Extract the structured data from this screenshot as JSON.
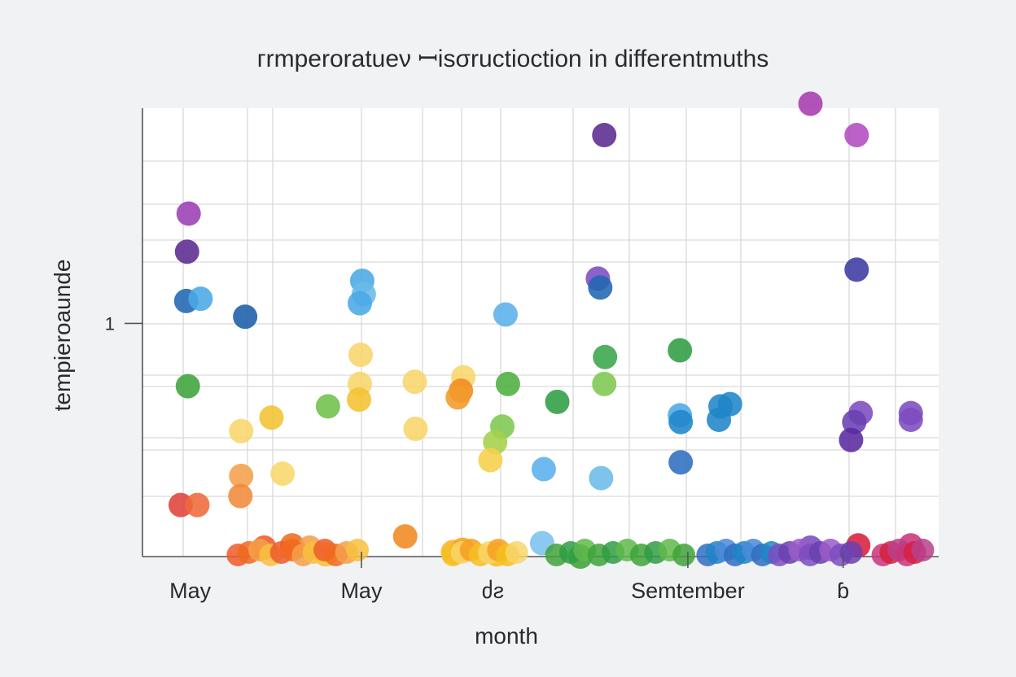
{
  "chart_data": {
    "type": "scatter",
    "title": "гrmperoratueν ꟷisσructioction in differentmuths",
    "xlabel": "month",
    "ylabel": "tempieroaunde",
    "xlim": [
      0,
      10
    ],
    "ylim": [
      0,
      2
    ],
    "x_ticks": [
      {
        "value": 0.6,
        "label": "May"
      },
      {
        "value": 2.75,
        "label": "May"
      },
      {
        "value": 4.4,
        "label": "ძƨ"
      },
      {
        "value": 6.85,
        "label": "Semtember"
      },
      {
        "value": 8.8,
        "label": "ɓ"
      }
    ],
    "y_ticks": [
      {
        "value": 1.04,
        "label": "1"
      }
    ],
    "grid": true,
    "points": [
      {
        "x": 0.58,
        "y": 1.53,
        "color": "#9b3fb5"
      },
      {
        "x": 0.56,
        "y": 1.36,
        "color": "#5a2a8e"
      },
      {
        "x": 0.55,
        "y": 1.14,
        "color": "#1f66b0"
      },
      {
        "x": 0.73,
        "y": 1.15,
        "color": "#4aa8e6"
      },
      {
        "x": 1.29,
        "y": 1.07,
        "color": "#1a5fa8"
      },
      {
        "x": 0.57,
        "y": 0.76,
        "color": "#3fa33a"
      },
      {
        "x": 0.48,
        "y": 0.23,
        "color": "#e0423a"
      },
      {
        "x": 0.69,
        "y": 0.23,
        "color": "#ef6a3a"
      },
      {
        "x": 1.24,
        "y": 0.56,
        "color": "#f8d56a"
      },
      {
        "x": 1.62,
        "y": 0.62,
        "color": "#f4c230"
      },
      {
        "x": 1.24,
        "y": 0.36,
        "color": "#f5a04a"
      },
      {
        "x": 1.23,
        "y": 0.27,
        "color": "#f08a3a"
      },
      {
        "x": 1.76,
        "y": 0.37,
        "color": "#f8d86a"
      },
      {
        "x": 2.33,
        "y": 0.67,
        "color": "#6fc04a"
      },
      {
        "x": 2.76,
        "y": 1.23,
        "color": "#4aa8e6"
      },
      {
        "x": 2.78,
        "y": 1.17,
        "color": "#6bbbe8"
      },
      {
        "x": 2.73,
        "y": 1.13,
        "color": "#4aa8e6"
      },
      {
        "x": 2.74,
        "y": 0.9,
        "color": "#f8d56a"
      },
      {
        "x": 2.73,
        "y": 0.77,
        "color": "#f8d56a"
      },
      {
        "x": 2.72,
        "y": 0.7,
        "color": "#f4c230"
      },
      {
        "x": 3.42,
        "y": 0.78,
        "color": "#f8d56a"
      },
      {
        "x": 3.43,
        "y": 0.57,
        "color": "#f8d56a"
      },
      {
        "x": 4.03,
        "y": 0.8,
        "color": "#f8d56a"
      },
      {
        "x": 4.0,
        "y": 0.74,
        "color": "#f08a20"
      },
      {
        "x": 3.96,
        "y": 0.71,
        "color": "#f29a2a"
      },
      {
        "x": 4.56,
        "y": 1.08,
        "color": "#5ab0ec"
      },
      {
        "x": 4.59,
        "y": 0.77,
        "color": "#4caf3f"
      },
      {
        "x": 4.52,
        "y": 0.58,
        "color": "#7ec850"
      },
      {
        "x": 4.43,
        "y": 0.51,
        "color": "#a4d14a"
      },
      {
        "x": 4.37,
        "y": 0.43,
        "color": "#f6d04a"
      },
      {
        "x": 5.21,
        "y": 0.69,
        "color": "#2f9d44"
      },
      {
        "x": 5.04,
        "y": 0.39,
        "color": "#5ab0ec"
      },
      {
        "x": 5.02,
        "y": 0.06,
        "color": "#7cc1ee"
      },
      {
        "x": 5.8,
        "y": 1.88,
        "color": "#5a2a8e"
      },
      {
        "x": 5.72,
        "y": 1.24,
        "color": "#7d4cc0"
      },
      {
        "x": 5.75,
        "y": 1.2,
        "color": "#1f66b0"
      },
      {
        "x": 5.81,
        "y": 0.89,
        "color": "#3aa64a"
      },
      {
        "x": 5.8,
        "y": 0.77,
        "color": "#7ec850"
      },
      {
        "x": 5.76,
        "y": 0.35,
        "color": "#6bbbe8"
      },
      {
        "x": 6.75,
        "y": 0.92,
        "color": "#2f9d44"
      },
      {
        "x": 6.75,
        "y": 0.63,
        "color": "#4aa8e6"
      },
      {
        "x": 6.76,
        "y": 0.6,
        "color": "#1f85c8"
      },
      {
        "x": 7.26,
        "y": 0.67,
        "color": "#1f85c8"
      },
      {
        "x": 7.38,
        "y": 0.68,
        "color": "#1f85c8"
      },
      {
        "x": 7.24,
        "y": 0.61,
        "color": "#1f85c8"
      },
      {
        "x": 6.76,
        "y": 0.42,
        "color": "#2f6ec0"
      },
      {
        "x": 8.39,
        "y": 2.02,
        "color": "#a83aae"
      },
      {
        "x": 8.97,
        "y": 1.88,
        "color": "#b24bc0"
      },
      {
        "x": 8.97,
        "y": 1.28,
        "color": "#3b3aa0"
      },
      {
        "x": 9.02,
        "y": 0.64,
        "color": "#7d4cc0"
      },
      {
        "x": 8.94,
        "y": 0.6,
        "color": "#6a3fb0"
      },
      {
        "x": 8.9,
        "y": 0.52,
        "color": "#5a2aa0"
      },
      {
        "x": 9.65,
        "y": 0.64,
        "color": "#7d4cc0"
      },
      {
        "x": 9.65,
        "y": 0.61,
        "color": "#7d4cc0"
      },
      {
        "x": 3.3,
        "y": 0.09,
        "color": "#f08a20"
      },
      {
        "x": 1.53,
        "y": 0.04,
        "color": "#ef5a2a"
      },
      {
        "x": 1.88,
        "y": 0.05,
        "color": "#f06a20"
      },
      {
        "x": 2.1,
        "y": 0.04,
        "color": "#f5a04a"
      },
      {
        "x": 2.3,
        "y": 0.01,
        "color": "#f8c040"
      },
      {
        "x": 3.9,
        "y": 0.02,
        "color": "#f8b030"
      },
      {
        "x": 4.02,
        "y": 0.03,
        "color": "#f6a020"
      },
      {
        "x": 4.45,
        "y": 0.01,
        "color": "#f4c020"
      },
      {
        "x": 5.5,
        "y": 0.0,
        "color": "#3fa33a"
      },
      {
        "x": 8.39,
        "y": 0.04,
        "color": "#7d4cc0"
      },
      {
        "x": 8.99,
        "y": 0.05,
        "color": "#d62040"
      },
      {
        "x": 9.65,
        "y": 0.05,
        "color": "#c8357a"
      }
    ],
    "bottom_cluster": [
      {
        "from": 1.2,
        "to": 2.7,
        "count": 12,
        "colors": [
          "#ef5a2a",
          "#f06a20",
          "#f5a04a",
          "#f8c040"
        ]
      },
      {
        "from": 3.9,
        "to": 4.7,
        "count": 8,
        "colors": [
          "#f4c020",
          "#f8d56a",
          "#f6a020"
        ]
      },
      {
        "from": 5.2,
        "to": 6.8,
        "count": 10,
        "colors": [
          "#3fa33a",
          "#2f9d44",
          "#5fb84a"
        ]
      },
      {
        "from": 7.1,
        "to": 7.9,
        "count": 8,
        "colors": [
          "#2f6ec0",
          "#1f85c8",
          "#4a8ad8"
        ]
      },
      {
        "from": 8.0,
        "to": 8.9,
        "count": 8,
        "colors": [
          "#7d4cc0",
          "#6a3fb0",
          "#9a5ac8"
        ]
      },
      {
        "from": 9.3,
        "to": 9.8,
        "count": 6,
        "colors": [
          "#c8357a",
          "#d62040",
          "#b8408a"
        ]
      }
    ]
  }
}
